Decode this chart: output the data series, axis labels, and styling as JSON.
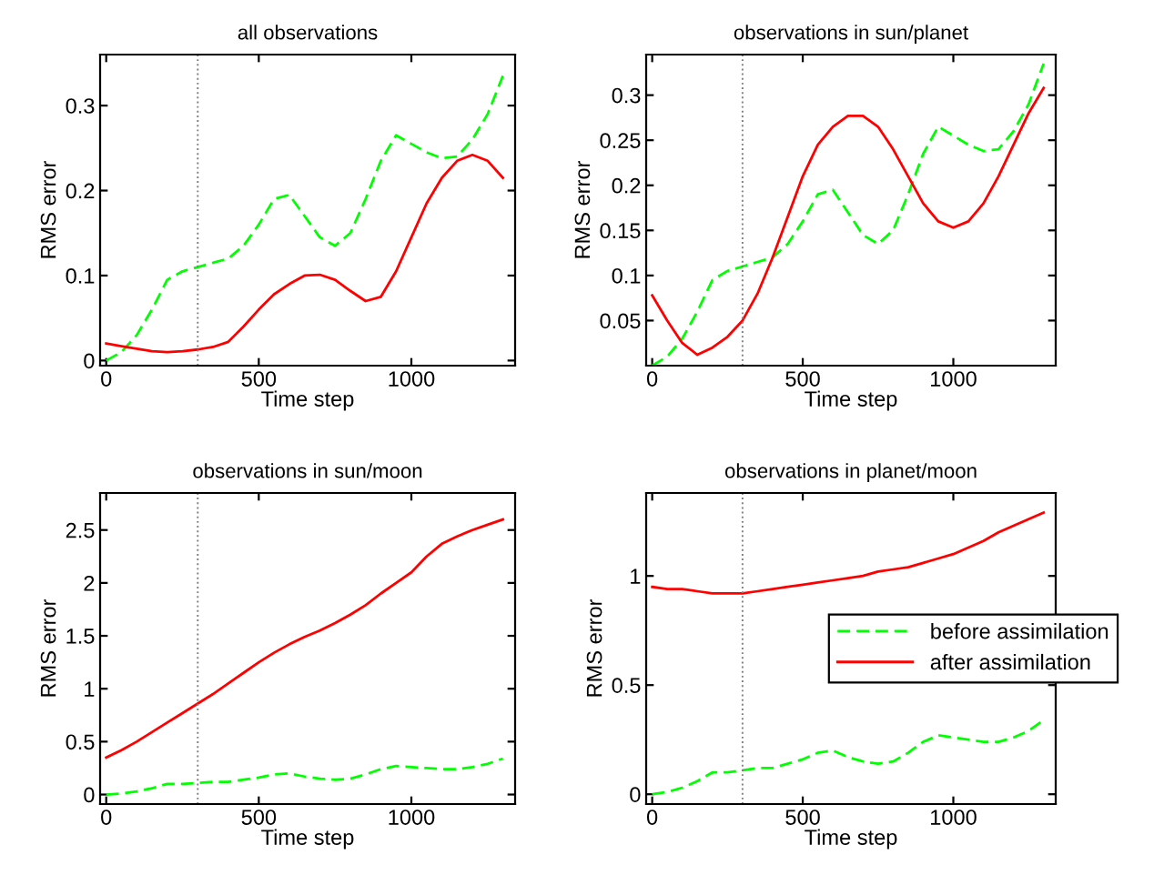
{
  "chart_data": [
    {
      "type": "line",
      "title": "all observations",
      "xlabel": "Time step",
      "ylabel": "RMS error",
      "x": [
        0,
        50,
        100,
        150,
        200,
        250,
        300,
        350,
        400,
        450,
        500,
        550,
        600,
        650,
        700,
        750,
        800,
        850,
        900,
        950,
        1000,
        1050,
        1100,
        1150,
        1200,
        1250,
        1300
      ],
      "xlim": [
        -20,
        1340
      ],
      "xticks": [
        0,
        500,
        1000
      ],
      "ylim": [
        -0.006,
        0.36
      ],
      "yticks": [
        0,
        0.1,
        0.2,
        0.3
      ],
      "grid": false,
      "legend": false,
      "series": [
        {
          "color": "#00ff00",
          "line_style": "dashed",
          "values": [
            0,
            0.01,
            0.03,
            0.06,
            0.095,
            0.105,
            0.11,
            0.115,
            0.12,
            0.135,
            0.16,
            0.19,
            0.195,
            0.17,
            0.145,
            0.135,
            0.15,
            0.19,
            0.235,
            0.265,
            0.255,
            0.245,
            0.238,
            0.24,
            0.26,
            0.29,
            0.335
          ]
        },
        {
          "color": "#ff0000",
          "line_style": "solid",
          "values": [
            0.02,
            0.017,
            0.014,
            0.011,
            0.01,
            0.011,
            0.013,
            0.016,
            0.022,
            0.04,
            0.06,
            0.078,
            0.09,
            0.1,
            0.101,
            0.095,
            0.082,
            0.07,
            0.075,
            0.105,
            0.145,
            0.185,
            0.215,
            0.235,
            0.242,
            0.235,
            0.215
          ]
        }
      ],
      "ref_lines": [
        {
          "axis": "x",
          "value": 300,
          "color": "#808080",
          "line_style": "dotted"
        }
      ]
    },
    {
      "type": "line",
      "title": "observations in sun/planet",
      "xlabel": "Time step",
      "ylabel": "RMS error",
      "x": [
        0,
        50,
        100,
        150,
        200,
        250,
        300,
        350,
        400,
        450,
        500,
        550,
        600,
        650,
        700,
        750,
        800,
        850,
        900,
        950,
        1000,
        1050,
        1100,
        1150,
        1200,
        1250,
        1300
      ],
      "xlim": [
        -20,
        1340
      ],
      "xticks": [
        0,
        500,
        1000
      ],
      "ylim": [
        0,
        0.345
      ],
      "yticks": [
        0.05,
        0.1,
        0.15,
        0.2,
        0.25,
        0.3
      ],
      "grid": false,
      "legend": false,
      "series": [
        {
          "color": "#00ff00",
          "line_style": "dashed",
          "values": [
            0,
            0.01,
            0.03,
            0.06,
            0.095,
            0.105,
            0.11,
            0.115,
            0.12,
            0.135,
            0.16,
            0.19,
            0.195,
            0.17,
            0.145,
            0.135,
            0.15,
            0.19,
            0.235,
            0.265,
            0.255,
            0.245,
            0.238,
            0.24,
            0.26,
            0.29,
            0.335
          ]
        },
        {
          "color": "#ff0000",
          "line_style": "solid",
          "values": [
            0.078,
            0.05,
            0.025,
            0.012,
            0.02,
            0.032,
            0.05,
            0.08,
            0.12,
            0.165,
            0.21,
            0.245,
            0.265,
            0.277,
            0.277,
            0.265,
            0.24,
            0.21,
            0.18,
            0.16,
            0.153,
            0.16,
            0.18,
            0.21,
            0.245,
            0.28,
            0.308
          ]
        }
      ],
      "ref_lines": [
        {
          "axis": "x",
          "value": 300,
          "color": "#808080",
          "line_style": "dotted"
        }
      ]
    },
    {
      "type": "line",
      "title": "observations in sun/moon",
      "xlabel": "Time step",
      "ylabel": "RMS error",
      "x": [
        0,
        50,
        100,
        150,
        200,
        250,
        300,
        350,
        400,
        450,
        500,
        550,
        600,
        650,
        700,
        750,
        800,
        850,
        900,
        950,
        1000,
        1050,
        1100,
        1150,
        1200,
        1250,
        1300
      ],
      "xlim": [
        -20,
        1340
      ],
      "xticks": [
        0,
        500,
        1000
      ],
      "ylim": [
        -0.09,
        2.85
      ],
      "yticks": [
        0,
        0.5,
        1,
        1.5,
        2,
        2.5
      ],
      "grid": false,
      "legend": false,
      "series": [
        {
          "color": "#00ff00",
          "line_style": "dashed",
          "values": [
            0,
            0.01,
            0.03,
            0.06,
            0.1,
            0.1,
            0.11,
            0.12,
            0.12,
            0.14,
            0.16,
            0.19,
            0.2,
            0.17,
            0.15,
            0.14,
            0.15,
            0.19,
            0.24,
            0.27,
            0.26,
            0.25,
            0.24,
            0.24,
            0.26,
            0.29,
            0.34
          ]
        },
        {
          "color": "#ff0000",
          "line_style": "solid",
          "values": [
            0.35,
            0.42,
            0.5,
            0.59,
            0.68,
            0.77,
            0.86,
            0.95,
            1.05,
            1.15,
            1.25,
            1.34,
            1.42,
            1.49,
            1.55,
            1.62,
            1.7,
            1.79,
            1.9,
            2.0,
            2.1,
            2.25,
            2.37,
            2.44,
            2.5,
            2.55,
            2.6
          ]
        }
      ],
      "ref_lines": [
        {
          "axis": "x",
          "value": 300,
          "color": "#808080",
          "line_style": "dotted"
        }
      ]
    },
    {
      "type": "line",
      "title": "observations in planet/moon",
      "xlabel": "Time step",
      "ylabel": "RMS error",
      "x": [
        0,
        50,
        100,
        150,
        200,
        250,
        300,
        350,
        400,
        450,
        500,
        550,
        600,
        650,
        700,
        750,
        800,
        850,
        900,
        950,
        1000,
        1050,
        1100,
        1150,
        1200,
        1250,
        1300
      ],
      "xlim": [
        -20,
        1340
      ],
      "xticks": [
        0,
        500,
        1000
      ],
      "ylim": [
        -0.045,
        1.38
      ],
      "yticks": [
        0,
        0.5,
        1
      ],
      "grid": false,
      "legend": "right",
      "series": [
        {
          "name": "before assimilation",
          "color": "#00ff00",
          "line_style": "dashed",
          "values": [
            0,
            0.01,
            0.03,
            0.06,
            0.1,
            0.1,
            0.11,
            0.12,
            0.12,
            0.14,
            0.16,
            0.19,
            0.2,
            0.17,
            0.15,
            0.14,
            0.15,
            0.19,
            0.24,
            0.27,
            0.26,
            0.25,
            0.24,
            0.24,
            0.26,
            0.29,
            0.34
          ]
        },
        {
          "name": "after assimilation",
          "color": "#ff0000",
          "line_style": "solid",
          "values": [
            0.95,
            0.94,
            0.94,
            0.93,
            0.92,
            0.92,
            0.92,
            0.93,
            0.94,
            0.95,
            0.96,
            0.97,
            0.98,
            0.99,
            1.0,
            1.02,
            1.03,
            1.04,
            1.06,
            1.08,
            1.1,
            1.13,
            1.16,
            1.2,
            1.23,
            1.26,
            1.29
          ]
        }
      ],
      "ref_lines": [
        {
          "axis": "x",
          "value": 300,
          "color": "#808080",
          "line_style": "dotted"
        }
      ]
    }
  ]
}
